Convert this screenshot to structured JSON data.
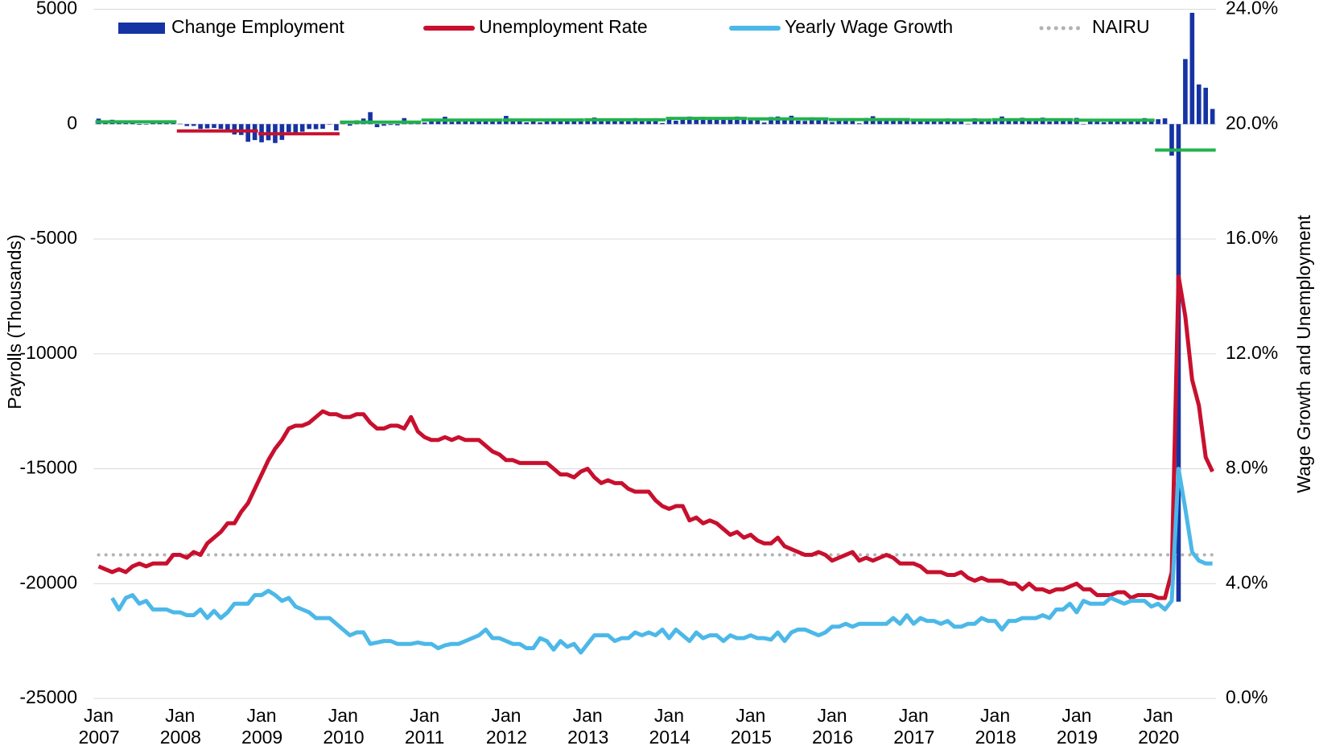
{
  "chart_data": {
    "type": "bar",
    "y_label": "Payrolls (Thousands)",
    "y2_label": "Wage Growth and Unemployment",
    "legend": "top",
    "grid": true,
    "ylim": [
      -25000,
      5000
    ],
    "yticks": [
      5000,
      0,
      -5000,
      -10000,
      -15000,
      -20000,
      -25000
    ],
    "y2lim": [
      0,
      24
    ],
    "y2ticks": [
      {
        "value": 24,
        "label": "24.0%"
      },
      {
        "value": 20,
        "label": "20.0%"
      },
      {
        "value": 16,
        "label": "16.0%"
      },
      {
        "value": 12,
        "label": "12.0%"
      },
      {
        "value": 8,
        "label": "8.0%"
      },
      {
        "value": 4,
        "label": "4.0%"
      },
      {
        "value": 0,
        "label": "0.0%"
      }
    ],
    "categories": [
      "Jan 2007",
      null,
      null,
      null,
      null,
      null,
      null,
      null,
      null,
      null,
      null,
      null,
      "Jan 2008",
      null,
      null,
      null,
      null,
      null,
      null,
      null,
      null,
      null,
      null,
      null,
      "Jan 2009",
      null,
      null,
      null,
      null,
      null,
      null,
      null,
      null,
      null,
      null,
      null,
      "Jan 2010",
      null,
      null,
      null,
      null,
      null,
      null,
      null,
      null,
      null,
      null,
      null,
      "Jan 2011",
      null,
      null,
      null,
      null,
      null,
      null,
      null,
      null,
      null,
      null,
      null,
      "Jan 2012",
      null,
      null,
      null,
      null,
      null,
      null,
      null,
      null,
      null,
      null,
      null,
      "Jan 2013",
      null,
      null,
      null,
      null,
      null,
      null,
      null,
      null,
      null,
      null,
      null,
      "Jan 2014",
      null,
      null,
      null,
      null,
      null,
      null,
      null,
      null,
      null,
      null,
      null,
      "Jan 2015",
      null,
      null,
      null,
      null,
      null,
      null,
      null,
      null,
      null,
      null,
      null,
      "Jan 2016",
      null,
      null,
      null,
      null,
      null,
      null,
      null,
      null,
      null,
      null,
      null,
      "Jan 2017",
      null,
      null,
      null,
      null,
      null,
      null,
      null,
      null,
      null,
      null,
      null,
      "Jan 2018",
      null,
      null,
      null,
      null,
      null,
      null,
      null,
      null,
      null,
      null,
      null,
      "Jan 2019",
      null,
      null,
      null,
      null,
      null,
      null,
      null,
      null,
      null,
      null,
      null,
      "Jan 2020",
      null,
      null,
      null,
      null,
      null,
      null,
      null,
      null
    ],
    "series": [
      {
        "name": "Change Employment",
        "type": "bar",
        "color": "#1533a3",
        "values": [
          240,
          90,
          190,
          80,
          140,
          80,
          -30,
          -20,
          80,
          80,
          120,
          100,
          17,
          -84,
          -78,
          -210,
          -185,
          -165,
          -209,
          -266,
          -452,
          -473,
          -769,
          -695,
          -791,
          -703,
          -823,
          -687,
          -349,
          -471,
          -329,
          -213,
          -220,
          -204,
          -2,
          -275,
          23,
          -68,
          164,
          243,
          522,
          -133,
          -70,
          -34,
          -52,
          263,
          132,
          70,
          68,
          220,
          235,
          322,
          102,
          226,
          126,
          108,
          212,
          176,
          132,
          209,
          358,
          237,
          233,
          78,
          115,
          76,
          143,
          177,
          203,
          146,
          132,
          244,
          211,
          286,
          130,
          197,
          226,
          162,
          122,
          261,
          190,
          212,
          258,
          47,
          190,
          151,
          272,
          329,
          267,
          317,
          232,
          218,
          283,
          250,
          329,
          290,
          190,
          271,
          70,
          309,
          332,
          226,
          365,
          150,
          139,
          295,
          253,
          260,
          91,
          240,
          245,
          181,
          35,
          267,
          345,
          159,
          249,
          141,
          193,
          144,
          216,
          229,
          124,
          194,
          127,
          246,
          163,
          180,
          14,
          256,
          236,
          171,
          176,
          332,
          182,
          196,
          277,
          235,
          158,
          282,
          111,
          217,
          183,
          176,
          269,
          1,
          147,
          210,
          85,
          182,
          194,
          207,
          208,
          185,
          261,
          184,
          214,
          251,
          -1373,
          -20787,
          2833,
          4846,
          1726,
          1583,
          661
        ]
      },
      {
        "name": "Unemployment Rate",
        "type": "line",
        "axis": "y2",
        "color": "#c8102e",
        "values": [
          4.6,
          4.5,
          4.4,
          4.5,
          4.4,
          4.6,
          4.7,
          4.6,
          4.7,
          4.7,
          4.7,
          5.0,
          5.0,
          4.9,
          5.1,
          5.0,
          5.4,
          5.6,
          5.8,
          6.1,
          6.1,
          6.5,
          6.8,
          7.3,
          7.8,
          8.3,
          8.7,
          9.0,
          9.4,
          9.5,
          9.5,
          9.6,
          9.8,
          10.0,
          9.9,
          9.9,
          9.8,
          9.8,
          9.9,
          9.9,
          9.6,
          9.4,
          9.4,
          9.5,
          9.5,
          9.4,
          9.8,
          9.3,
          9.1,
          9.0,
          9.0,
          9.1,
          9.0,
          9.1,
          9.0,
          9.0,
          9.0,
          8.8,
          8.6,
          8.5,
          8.3,
          8.3,
          8.2,
          8.2,
          8.2,
          8.2,
          8.2,
          8.0,
          7.8,
          7.8,
          7.7,
          7.9,
          8.0,
          7.7,
          7.5,
          7.6,
          7.5,
          7.5,
          7.3,
          7.2,
          7.2,
          7.2,
          6.9,
          6.7,
          6.6,
          6.7,
          6.7,
          6.2,
          6.3,
          6.1,
          6.2,
          6.1,
          5.9,
          5.7,
          5.8,
          5.6,
          5.7,
          5.5,
          5.4,
          5.4,
          5.6,
          5.3,
          5.2,
          5.1,
          5.0,
          5.0,
          5.1,
          5.0,
          4.8,
          4.9,
          5.0,
          5.1,
          4.8,
          4.9,
          4.8,
          4.9,
          5.0,
          4.9,
          4.7,
          4.7,
          4.7,
          4.6,
          4.4,
          4.4,
          4.4,
          4.3,
          4.3,
          4.4,
          4.2,
          4.1,
          4.2,
          4.1,
          4.1,
          4.1,
          4.0,
          4.0,
          3.8,
          4.0,
          3.8,
          3.8,
          3.7,
          3.8,
          3.8,
          3.9,
          4.0,
          3.8,
          3.8,
          3.6,
          3.6,
          3.6,
          3.7,
          3.7,
          3.5,
          3.6,
          3.6,
          3.6,
          3.5,
          3.5,
          4.4,
          14.7,
          13.3,
          11.1,
          10.2,
          8.4,
          7.9
        ]
      },
      {
        "name": "Yearly Wage Growth",
        "type": "line",
        "axis": "y2",
        "color": "#4cb8e8",
        "values": [
          null,
          null,
          3.5,
          3.1,
          3.5,
          3.6,
          3.3,
          3.4,
          3.1,
          3.1,
          3.1,
          3.0,
          3.0,
          2.9,
          2.9,
          3.1,
          2.8,
          3.05,
          2.8,
          3.0,
          3.3,
          3.3,
          3.3,
          3.6,
          3.6,
          3.75,
          3.6,
          3.4,
          3.5,
          3.2,
          3.1,
          3.0,
          2.8,
          2.8,
          2.8,
          2.6,
          2.4,
          2.2,
          2.3,
          2.3,
          1.9,
          1.95,
          2.0,
          2.0,
          1.9,
          1.9,
          1.9,
          1.95,
          1.9,
          1.9,
          1.75,
          1.85,
          1.9,
          1.9,
          2.0,
          2.1,
          2.2,
          2.4,
          2.1,
          2.1,
          2.0,
          1.9,
          1.9,
          1.75,
          1.75,
          2.1,
          2.0,
          1.7,
          2.0,
          1.8,
          1.9,
          1.6,
          1.9,
          2.2,
          2.2,
          2.2,
          2.0,
          2.1,
          2.1,
          2.3,
          2.2,
          2.3,
          2.2,
          2.4,
          2.1,
          2.4,
          2.2,
          2.0,
          2.3,
          2.1,
          2.2,
          2.2,
          2.0,
          2.2,
          2.1,
          2.1,
          2.2,
          2.1,
          2.1,
          2.05,
          2.3,
          2.0,
          2.3,
          2.4,
          2.4,
          2.3,
          2.2,
          2.3,
          2.5,
          2.5,
          2.6,
          2.5,
          2.6,
          2.6,
          2.6,
          2.6,
          2.6,
          2.8,
          2.6,
          2.9,
          2.6,
          2.8,
          2.7,
          2.7,
          2.6,
          2.7,
          2.5,
          2.5,
          2.6,
          2.6,
          2.8,
          2.7,
          2.7,
          2.4,
          2.7,
          2.7,
          2.8,
          2.8,
          2.8,
          2.9,
          2.8,
          3.1,
          3.1,
          3.3,
          3.0,
          3.4,
          3.3,
          3.3,
          3.3,
          3.5,
          3.4,
          3.3,
          3.4,
          3.4,
          3.4,
          3.2,
          3.3,
          3.1,
          3.4,
          8.0,
          6.6,
          5.1,
          4.8,
          4.7,
          4.7
        ]
      },
      {
        "name": "NAIRU",
        "type": "dotted",
        "axis": "y2",
        "color": "#b3b3b3",
        "values": [
          5,
          5,
          5,
          5,
          5,
          5,
          5,
          5,
          5,
          5,
          5,
          5,
          5,
          5,
          5,
          5,
          5,
          5,
          5,
          5,
          5,
          5,
          5,
          5,
          5,
          5,
          5,
          5,
          5,
          5,
          5,
          5,
          5,
          5,
          5,
          5,
          5,
          5,
          5,
          5,
          5,
          5,
          5,
          5,
          5,
          5,
          5,
          5,
          5,
          5,
          5,
          5,
          5,
          5,
          5,
          5,
          5,
          5,
          5,
          5,
          5,
          5,
          5,
          5,
          5,
          5,
          5,
          5,
          5,
          5,
          5,
          5,
          5,
          5,
          5,
          5,
          5,
          5,
          5,
          5,
          5,
          5,
          5,
          5,
          5,
          5,
          5,
          5,
          5,
          5,
          5,
          5,
          5,
          5,
          5,
          5,
          5,
          5,
          5,
          5,
          5,
          5,
          5,
          5,
          5,
          5,
          5,
          5,
          5,
          5,
          5,
          5,
          5,
          5,
          5,
          5,
          5,
          5,
          5,
          5,
          5,
          5,
          5,
          5,
          5,
          5,
          5,
          5,
          5,
          5,
          5,
          5,
          5,
          5,
          5,
          5,
          5,
          5,
          5,
          5,
          5,
          5,
          5,
          5,
          5,
          5,
          5,
          5,
          5,
          5,
          5,
          5,
          5,
          5,
          5,
          5,
          5,
          5,
          5,
          5,
          5,
          5,
          5,
          5,
          5
        ]
      }
    ],
    "annual_averages": {
      "values": [
        100,
        -297,
        -420,
        86,
        175,
        180,
        190,
        250,
        226,
        195,
        176,
        193,
        170,
        -1130
      ],
      "colors": [
        "#21b24b",
        "#c8102e",
        "#c8102e",
        "#21b24b",
        "#21b24b",
        "#21b24b",
        "#21b24b",
        "#21b24b",
        "#21b24b",
        "#21b24b",
        "#21b24b",
        "#21b24b",
        "#21b24b",
        "#21b24b"
      ]
    }
  }
}
